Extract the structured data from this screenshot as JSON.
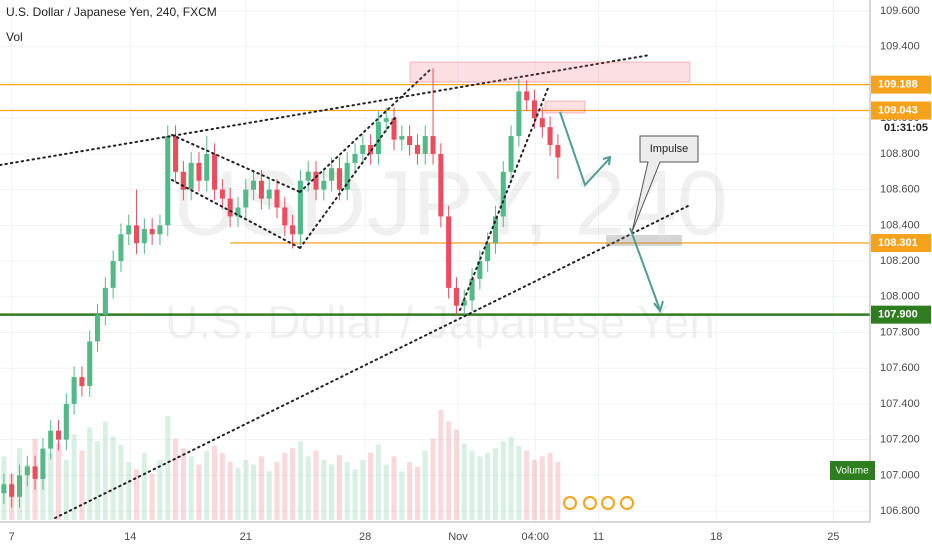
{
  "chart_data": {
    "type": "candlestick",
    "title": "U.S. Dollar / Japanese Yen, 240, FXCM",
    "subtitle": "Vol",
    "watermark": "USDJPY, 240",
    "watermark_subtitle": "U.S. Dollar / Japanese Yen",
    "volume_label": "Volume",
    "countdown": "01:31:05",
    "annotation": "Impulse",
    "up_color": "#53b987",
    "down_color": "#eb4d5c",
    "ylim": [
      106.582,
      109.662
    ],
    "yticks": [
      {
        "value": 106.8,
        "label": "106.800"
      },
      {
        "value": 107.0,
        "label": "107.000"
      },
      {
        "value": 107.2,
        "label": "107.200"
      },
      {
        "value": 107.4,
        "label": "107.400"
      },
      {
        "value": 107.6,
        "label": "107.600"
      },
      {
        "value": 107.8,
        "label": "107.800"
      },
      {
        "value": 108.0,
        "label": "108.000"
      },
      {
        "value": 108.2,
        "label": "108.200"
      },
      {
        "value": 108.4,
        "label": "108.400"
      },
      {
        "value": 108.6,
        "label": "108.600"
      },
      {
        "value": 108.8,
        "label": "108.800"
      },
      {
        "value": 109.0,
        "label": "109.000"
      },
      {
        "value": 109.2,
        "label": "109.200"
      },
      {
        "value": 109.4,
        "label": "109.400"
      },
      {
        "value": 109.6,
        "label": "109.600"
      }
    ],
    "xlim": [
      0,
      111.5
    ],
    "xticks": [
      {
        "value": 1.5,
        "label": "7"
      },
      {
        "value": 16.7,
        "label": "14"
      },
      {
        "value": 31.5,
        "label": "21"
      },
      {
        "value": 46.8,
        "label": "28"
      },
      {
        "value": 58.7,
        "label": "Nov"
      },
      {
        "value": 68.6,
        "label": "04:00"
      },
      {
        "value": 76.7,
        "label": "11"
      },
      {
        "value": 91.8,
        "label": "18"
      },
      {
        "value": 106.8,
        "label": "25"
      }
    ],
    "levels": [
      {
        "value": 109.188,
        "label": "109.188",
        "color": "#f7a21b"
      },
      {
        "value": 109.043,
        "label": "109.043",
        "color": "#f7a21b"
      },
      {
        "value": 108.301,
        "label": "108.301",
        "color": "#f7a21b"
      },
      {
        "value": 107.9,
        "label": "107.900",
        "color": "#2e7d1f"
      }
    ],
    "open": [
      106.9,
      106.95,
      106.88,
      107.0,
      107.05,
      106.98,
      107.15,
      107.25,
      107.2,
      107.4,
      107.55,
      107.5,
      107.75,
      107.9,
      108.05,
      108.2,
      108.35,
      108.4,
      108.3,
      108.38,
      108.35,
      108.4,
      108.9,
      108.7,
      108.6,
      108.75,
      108.65,
      108.8,
      108.6,
      108.55,
      108.45,
      108.5,
      108.6,
      108.65,
      108.55,
      108.6,
      108.5,
      108.4,
      108.35,
      108.65,
      108.7,
      108.6,
      108.65,
      108.72,
      108.6,
      108.75,
      108.8,
      108.85,
      108.8,
      108.98,
      109.0,
      108.88,
      108.9,
      108.85,
      108.8,
      108.9,
      108.8,
      108.45,
      108.05,
      107.95,
      107.98,
      108.1,
      108.2,
      108.3,
      108.45,
      108.7,
      108.9,
      109.15,
      109.1,
      109.0,
      108.95,
      108.85
    ],
    "high": [
      107.01,
      107.01,
      107.06,
      107.11,
      107.11,
      107.21,
      107.31,
      107.31,
      107.46,
      107.61,
      107.61,
      107.81,
      107.96,
      108.11,
      108.26,
      108.41,
      108.46,
      108.6,
      108.44,
      108.44,
      108.46,
      108.96,
      108.96,
      108.76,
      108.81,
      108.81,
      108.9,
      108.86,
      108.66,
      108.61,
      108.56,
      108.66,
      108.71,
      108.71,
      108.66,
      108.66,
      108.56,
      108.46,
      108.71,
      108.76,
      108.76,
      108.71,
      108.78,
      108.78,
      108.81,
      108.86,
      108.91,
      108.91,
      109.04,
      109.06,
      109.06,
      108.96,
      108.96,
      108.91,
      108.96,
      109.28,
      108.86,
      108.51,
      108.11,
      108.04,
      108.16,
      108.26,
      108.36,
      108.51,
      108.76,
      108.96,
      109.22,
      109.21,
      109.16,
      109.06,
      109.01,
      108.91
    ],
    "low": [
      106.84,
      106.82,
      106.82,
      106.94,
      106.92,
      106.92,
      107.09,
      107.14,
      107.14,
      107.34,
      107.44,
      107.44,
      107.69,
      107.84,
      107.99,
      108.14,
      108.29,
      108.24,
      108.24,
      108.29,
      108.29,
      108.34,
      108.64,
      108.54,
      108.54,
      108.59,
      108.59,
      108.54,
      108.49,
      108.39,
      108.39,
      108.44,
      108.54,
      108.49,
      108.49,
      108.44,
      108.34,
      108.27,
      108.29,
      108.59,
      108.54,
      108.54,
      108.59,
      108.54,
      108.54,
      108.69,
      108.74,
      108.74,
      108.74,
      108.92,
      108.82,
      108.82,
      108.79,
      108.74,
      108.74,
      108.74,
      108.39,
      107.99,
      107.9,
      107.89,
      107.92,
      108.04,
      108.14,
      108.24,
      108.39,
      108.64,
      108.84,
      109.04,
      108.94,
      108.89,
      108.79,
      108.66
    ],
    "close": [
      106.95,
      106.88,
      107.0,
      107.05,
      106.98,
      107.15,
      107.25,
      107.2,
      107.4,
      107.55,
      107.5,
      107.75,
      107.9,
      108.05,
      108.2,
      108.35,
      108.4,
      108.3,
      108.38,
      108.35,
      108.4,
      108.9,
      108.7,
      108.6,
      108.75,
      108.65,
      108.8,
      108.6,
      108.55,
      108.45,
      108.5,
      108.6,
      108.65,
      108.55,
      108.6,
      108.5,
      108.4,
      108.35,
      108.65,
      108.7,
      108.6,
      108.65,
      108.72,
      108.6,
      108.75,
      108.8,
      108.85,
      108.8,
      108.98,
      109.0,
      108.88,
      108.9,
      108.85,
      108.8,
      108.9,
      108.8,
      108.45,
      108.05,
      107.95,
      107.98,
      108.1,
      108.2,
      108.3,
      108.45,
      108.7,
      108.9,
      109.15,
      109.1,
      109.0,
      108.95,
      108.85,
      108.78
    ],
    "volume": [
      55,
      40,
      62,
      48,
      70,
      45,
      58,
      66,
      52,
      74,
      60,
      80,
      68,
      85,
      72,
      65,
      50,
      44,
      58,
      40,
      52,
      90,
      70,
      62,
      55,
      48,
      60,
      64,
      58,
      50,
      45,
      52,
      48,
      55,
      42,
      50,
      58,
      62,
      68,
      55,
      60,
      52,
      48,
      56,
      50,
      44,
      52,
      58,
      65,
      48,
      55,
      42,
      50,
      46,
      60,
      70,
      95,
      85,
      78,
      66,
      60,
      55,
      58,
      62,
      68,
      72,
      64,
      60,
      52,
      55,
      58,
      50
    ]
  }
}
